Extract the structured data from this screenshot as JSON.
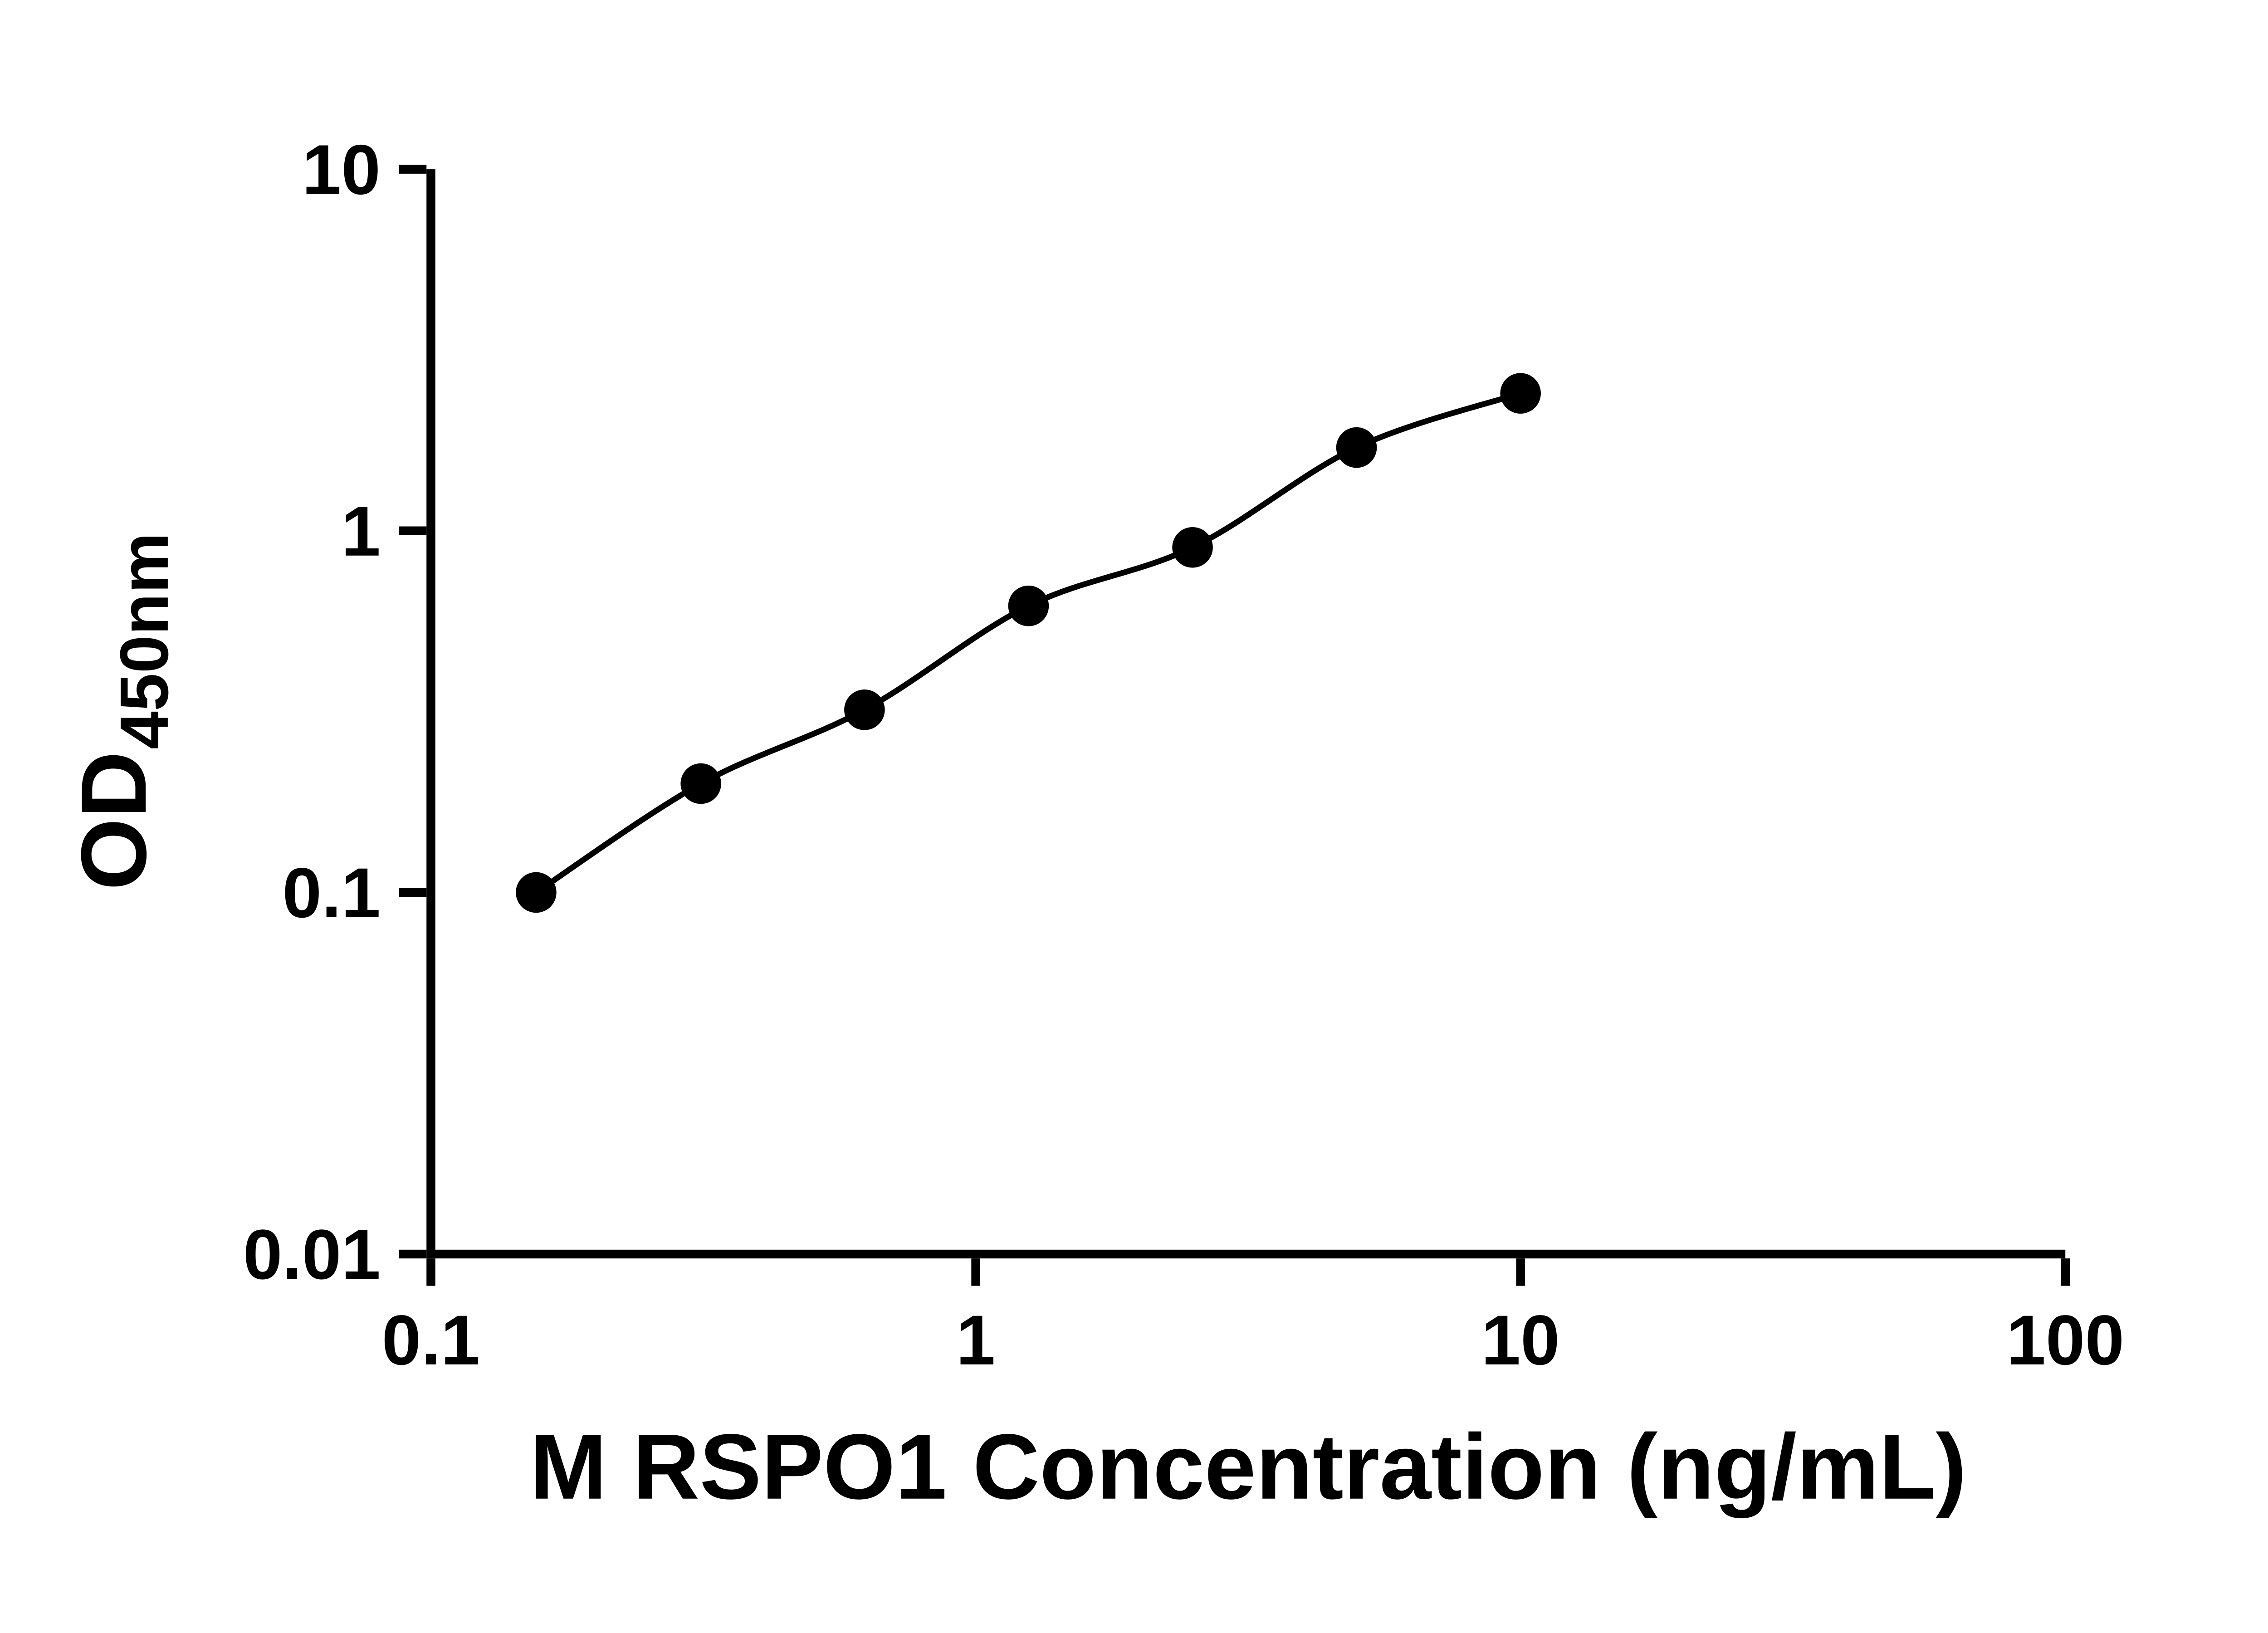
{
  "chart_data": {
    "type": "scatter",
    "subtype": "standard-curve-log-log",
    "x": [
      0.156,
      0.313,
      0.625,
      1.25,
      2.5,
      5,
      10
    ],
    "y": [
      0.1,
      0.2,
      0.32,
      0.62,
      0.9,
      1.7,
      2.4
    ],
    "title": "",
    "xlabel": "M RSPO1 Concentration (ng/mL)",
    "ylabel_main": "OD",
    "ylabel_sub": "450nm",
    "xscale": "log",
    "yscale": "log",
    "xlim": [
      0.1,
      100
    ],
    "ylim": [
      0.01,
      10
    ],
    "x_ticks": [
      0.1,
      1,
      10,
      100
    ],
    "x_tick_labels": [
      "0.1",
      "1",
      "10",
      "100"
    ],
    "y_ticks": [
      0.01,
      0.1,
      1,
      10
    ],
    "y_tick_labels": [
      "0.01",
      "0.1",
      "1",
      "10"
    ],
    "grid": false,
    "legend": "none",
    "marker_shape": "filled-circle",
    "marker_color": "#000000",
    "line_color": "#000000",
    "axis_color": "#000000",
    "background": "#ffffff"
  }
}
